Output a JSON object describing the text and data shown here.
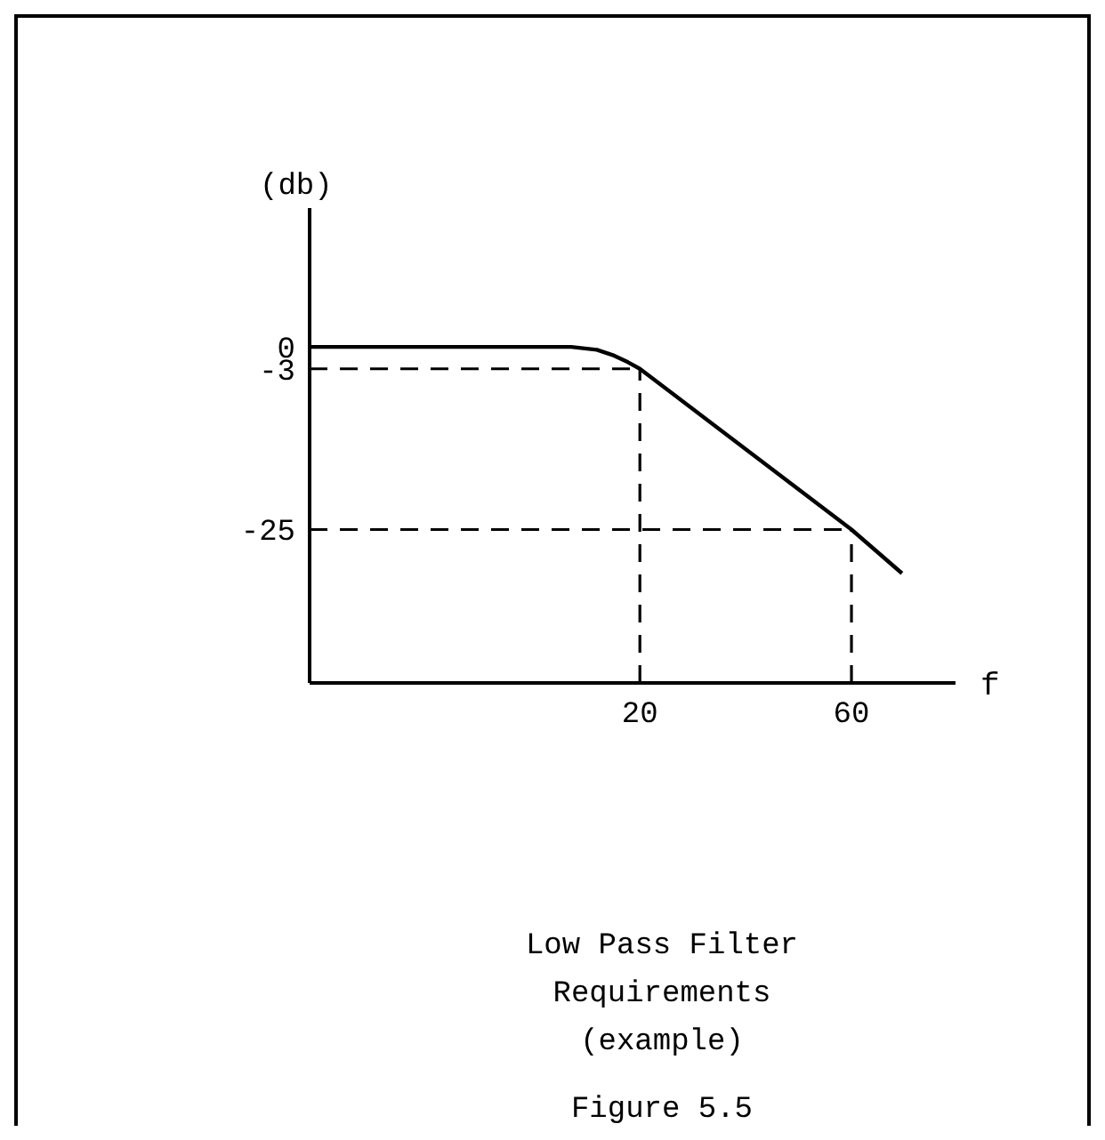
{
  "chart_data": {
    "type": "line",
    "title": "Low Pass Filter\nRequirements\n(example)",
    "xlabel": "f",
    "ylabel": "(db)",
    "annotations": [
      "Figure 5.5"
    ],
    "log": "x",
    "xlim": [
      3.6,
      103
    ],
    "xticks": [
      20,
      60
    ],
    "ylim": [
      -46,
      19
    ],
    "yticks": [
      0,
      -3,
      -25
    ],
    "series": [
      {
        "color": "#000000",
        "x": [
          3.6,
          14,
          16,
          17.5,
          18.8,
          20,
          60,
          78
        ],
        "values": [
          0,
          0,
          -0.4,
          -1.2,
          -2.1,
          -3,
          -25,
          -31
        ]
      }
    ],
    "ref_lines": [
      {
        "axis": "y",
        "value": -3,
        "line_style": "dashed"
      },
      {
        "axis": "x",
        "value": 20,
        "line_style": "dashed"
      },
      {
        "axis": "y",
        "value": -25,
        "line_style": "dashed"
      },
      {
        "axis": "x",
        "value": 60,
        "line_style": "dashed"
      }
    ],
    "line_style": "solid",
    "grid": false
  }
}
